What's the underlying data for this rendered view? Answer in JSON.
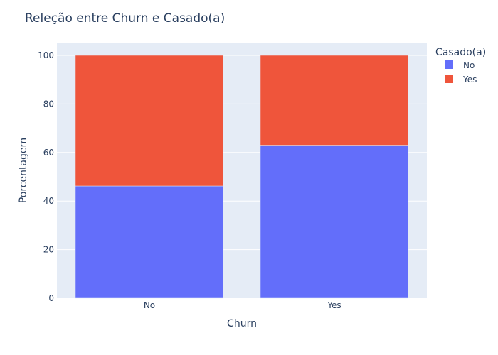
{
  "chart_data": {
    "type": "bar",
    "barmode": "stack",
    "title": "Releção entre Churn e Casado(a)",
    "xlabel": "Churn",
    "ylabel": "Porcentagem",
    "categories": [
      "No",
      "Yes"
    ],
    "ylim": [
      0,
      100
    ],
    "yticks": [
      0,
      20,
      40,
      60,
      80,
      100
    ],
    "grid": true,
    "legend_title": "Casado(a)",
    "legend_position": "top-right",
    "series": [
      {
        "name": "No",
        "values": [
          46.2,
          63.0
        ],
        "color": "#636efa"
      },
      {
        "name": "Yes",
        "values": [
          53.8,
          37.0
        ],
        "color": "#ef553b"
      }
    ]
  },
  "colors": {
    "plot_background": "#e5ecf6",
    "gridline": "#ffffff",
    "text": "#2a3f5f"
  }
}
